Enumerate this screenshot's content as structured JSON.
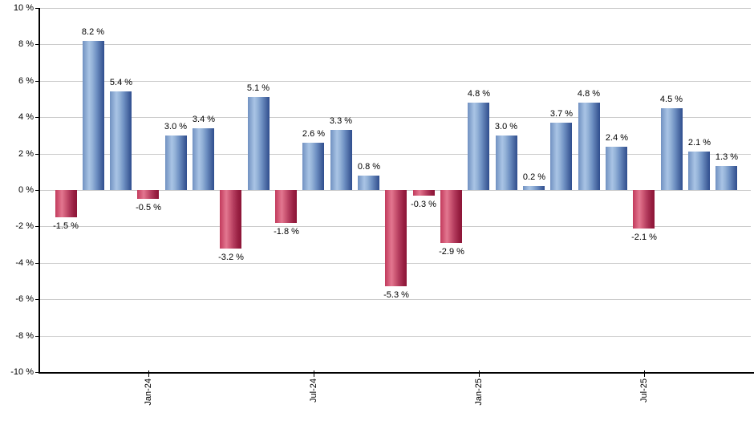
{
  "chart_data": {
    "type": "bar",
    "title": "",
    "xlabel": "",
    "ylabel": "",
    "ylim": [
      -10,
      10
    ],
    "y_tick_step": 2,
    "grid": true,
    "legend_position": "none",
    "y_tick_labels": [
      "10 %",
      "8 %",
      "6 %",
      "4 %",
      "2 %",
      "0 %",
      "-2 %",
      "-4 %",
      "-6 %",
      "-8 %",
      "-10 %"
    ],
    "y_tick_values": [
      10,
      8,
      6,
      4,
      2,
      0,
      -2,
      -4,
      -6,
      -8,
      -10
    ],
    "x_tick_labels": [
      {
        "bar_index": 3,
        "label": "Jan-24"
      },
      {
        "bar_index": 9,
        "label": "Jul-24"
      },
      {
        "bar_index": 15,
        "label": "Jan-25"
      },
      {
        "bar_index": 21,
        "label": "Jul-25"
      }
    ],
    "bars": [
      {
        "value": -1.5,
        "label": "-1.5 %"
      },
      {
        "value": 8.2,
        "label": "8.2 %"
      },
      {
        "value": 5.4,
        "label": "5.4 %"
      },
      {
        "value": -0.5,
        "label": "-0.5 %"
      },
      {
        "value": 3.0,
        "label": "3.0 %"
      },
      {
        "value": 3.4,
        "label": "3.4 %"
      },
      {
        "value": -3.2,
        "label": "-3.2 %"
      },
      {
        "value": 5.1,
        "label": "5.1 %"
      },
      {
        "value": -1.8,
        "label": "-1.8 %"
      },
      {
        "value": 2.6,
        "label": "2.6 %"
      },
      {
        "value": 3.3,
        "label": "3.3 %"
      },
      {
        "value": 0.8,
        "label": "0.8 %"
      },
      {
        "value": -5.3,
        "label": "-5.3 %"
      },
      {
        "value": -0.3,
        "label": "-0.3 %"
      },
      {
        "value": -2.9,
        "label": "-2.9 %"
      },
      {
        "value": 4.8,
        "label": "4.8 %"
      },
      {
        "value": 3.0,
        "label": "3.0 %"
      },
      {
        "value": 0.2,
        "label": "0.2 %"
      },
      {
        "value": 3.7,
        "label": "3.7 %"
      },
      {
        "value": 4.8,
        "label": "4.8 %"
      },
      {
        "value": 2.4,
        "label": "2.4 %"
      },
      {
        "value": -2.1,
        "label": "-2.1 %"
      },
      {
        "value": 4.5,
        "label": "4.5 %"
      },
      {
        "value": 2.1,
        "label": "2.1 %"
      },
      {
        "value": 1.3,
        "label": "1.3 %"
      }
    ],
    "positive_color": "#88aadd",
    "negative_color": "#c23a5c",
    "grid_color": "#cccccc",
    "axis_color": "#000000",
    "label_color": "#000000"
  }
}
